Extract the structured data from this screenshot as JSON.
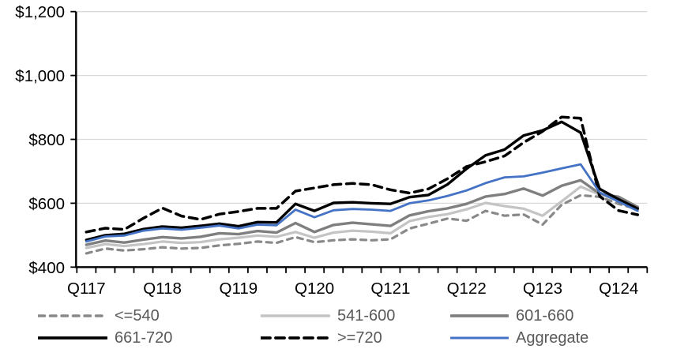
{
  "chart_data": {
    "type": "line",
    "title": "",
    "xlabel": "",
    "ylabel": "",
    "ylim": [
      400,
      1200
    ],
    "grid": "horizontal",
    "legend_position": "bottom",
    "y_ticks": [
      {
        "value": 400,
        "label": "$400"
      },
      {
        "value": 600,
        "label": "$600"
      },
      {
        "value": 800,
        "label": "$800"
      },
      {
        "value": 1000,
        "label": "$1,000"
      },
      {
        "value": 1200,
        "label": "$1,200"
      }
    ],
    "categories": [
      "Q117",
      "Q217",
      "Q317",
      "Q417",
      "Q118",
      "Q218",
      "Q318",
      "Q418",
      "Q119",
      "Q219",
      "Q319",
      "Q419",
      "Q120",
      "Q220",
      "Q320",
      "Q420",
      "Q121",
      "Q221",
      "Q321",
      "Q421",
      "Q122",
      "Q222",
      "Q322",
      "Q422",
      "Q123",
      "Q223",
      "Q323",
      "Q423",
      "Q124",
      "Q224"
    ],
    "x_axis_labels": [
      {
        "index": 0,
        "label": "Q117"
      },
      {
        "index": 4,
        "label": "Q118"
      },
      {
        "index": 8,
        "label": "Q119"
      },
      {
        "index": 12,
        "label": "Q120"
      },
      {
        "index": 16,
        "label": "Q121"
      },
      {
        "index": 20,
        "label": "Q122"
      },
      {
        "index": 24,
        "label": "Q123"
      },
      {
        "index": 28,
        "label": "Q124"
      }
    ],
    "series": [
      {
        "name": "<=540",
        "color": "#898989",
        "style": "dashed",
        "width": 3.2,
        "values": [
          443,
          458,
          452,
          456,
          462,
          458,
          460,
          468,
          473,
          480,
          476,
          494,
          478,
          484,
          487,
          484,
          487,
          521,
          536,
          552,
          545,
          576,
          561,
          565,
          533,
          595,
          625,
          620,
          598,
          581
        ]
      },
      {
        "name": "541-600",
        "color": "#C4C4C4",
        "style": "solid",
        "width": 3.2,
        "values": [
          460,
          472,
          466,
          472,
          480,
          476,
          478,
          487,
          492,
          499,
          495,
          510,
          492,
          508,
          514,
          511,
          506,
          544,
          557,
          566,
          581,
          601,
          591,
          583,
          561,
          606,
          652,
          627,
          609,
          589
        ]
      },
      {
        "name": "601-660",
        "color": "#7F7F7F",
        "style": "solid",
        "width": 3.4,
        "values": [
          470,
          483,
          477,
          486,
          494,
          490,
          495,
          506,
          503,
          513,
          508,
          538,
          510,
          532,
          539,
          534,
          529,
          562,
          575,
          584,
          598,
          621,
          629,
          646,
          624,
          655,
          672,
          630,
          620,
          588
        ]
      },
      {
        "name": "661-720",
        "color": "#000000",
        "style": "solid",
        "width": 3.4,
        "values": [
          485,
          500,
          504,
          519,
          527,
          523,
          529,
          536,
          528,
          541,
          540,
          598,
          576,
          601,
          603,
          600,
          598,
          619,
          626,
          659,
          708,
          750,
          768,
          812,
          828,
          855,
          821,
          645,
          612,
          583
        ]
      },
      {
        "name": ">=720",
        "color": "#000000",
        "style": "dashed",
        "width": 3.5,
        "values": [
          510,
          522,
          518,
          553,
          585,
          560,
          549,
          566,
          574,
          584,
          584,
          638,
          648,
          658,
          662,
          658,
          642,
          632,
          645,
          677,
          715,
          730,
          748,
          790,
          825,
          870,
          866,
          622,
          577,
          564
        ]
      },
      {
        "name": "Aggregate",
        "color": "#4472C4",
        "style": "solid",
        "width": 2.8,
        "values": [
          480,
          496,
          499,
          514,
          521,
          517,
          523,
          530,
          521,
          533,
          531,
          580,
          556,
          578,
          582,
          580,
          576,
          600,
          609,
          623,
          640,
          663,
          681,
          684,
          696,
          709,
          722,
          634,
          605,
          576
        ]
      }
    ],
    "colors": {
      "gridline": "#D9D9D9",
      "axis": "#000000",
      "tick_label": "#000000",
      "legend_text": "#595959",
      "background": "#FFFFFF"
    }
  },
  "legend": {
    "rows": 2,
    "cols": 3,
    "order_note": "row1: <=540, 541-600, 601-660 ; row2: 661-720, >=720, Aggregate"
  }
}
